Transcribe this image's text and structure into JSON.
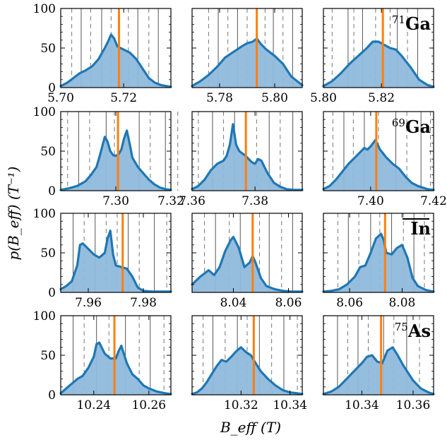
{
  "figure": {
    "ylabel": "p(B_eff) (T⁻¹)",
    "xlabel": "B_eff (T)"
  },
  "colors": {
    "fill": "#8fb9dc",
    "line": "#1f77b4",
    "marker": "#ff7f0e",
    "solid_grid": "#555555",
    "dashed_grid": "#777777"
  },
  "chart_data": [
    {
      "type": "area",
      "row": 0,
      "col": 0,
      "label": "",
      "xlim": [
        5.7,
        5.735
      ],
      "ylim": [
        0,
        100
      ],
      "xticks": [
        5.7,
        5.72
      ],
      "xticklabels": [
        "5.70",
        "5.72"
      ],
      "yticks": [
        0,
        50,
        100
      ],
      "vline": 5.7185,
      "solid_lines": [
        5.7065,
        5.713,
        5.7245,
        5.731
      ],
      "dashed_lines": [
        5.7035,
        5.7095,
        5.716,
        5.7215,
        5.728
      ],
      "x": [
        5.7,
        5.702,
        5.704,
        5.706,
        5.708,
        5.71,
        5.712,
        5.714,
        5.715,
        5.716,
        5.717,
        5.718,
        5.72,
        5.722,
        5.724,
        5.726,
        5.728,
        5.73,
        5.732,
        5.735
      ],
      "y": [
        2,
        6,
        12,
        18,
        22,
        27,
        36,
        50,
        58,
        67,
        62,
        52,
        48,
        44,
        36,
        24,
        12,
        6,
        3,
        1
      ]
    },
    {
      "type": "area",
      "row": 0,
      "col": 1,
      "label": "",
      "xlim": [
        5.77,
        5.81
      ],
      "ylim": [
        0,
        100
      ],
      "xticks": [
        5.78,
        5.8
      ],
      "xticklabels": [
        "5.78",
        "5.80"
      ],
      "yticks": [
        0,
        50,
        100
      ],
      "vline": 5.7935,
      "solid_lines": [
        5.7795,
        5.7865,
        5.7995,
        5.8065
      ],
      "dashed_lines": [
        5.776,
        5.783,
        5.79,
        5.7965,
        5.803
      ],
      "x": [
        5.77,
        5.773,
        5.776,
        5.779,
        5.782,
        5.785,
        5.788,
        5.79,
        5.792,
        5.7935,
        5.795,
        5.797,
        5.8,
        5.803,
        5.806,
        5.81
      ],
      "y": [
        2,
        8,
        16,
        26,
        38,
        45,
        52,
        56,
        58,
        62,
        55,
        48,
        40,
        30,
        14,
        3
      ]
    },
    {
      "type": "area",
      "row": 0,
      "col": 2,
      "label": "71Ga",
      "xlim": [
        5.8,
        5.838
      ],
      "ylim": [
        0,
        100
      ],
      "xticks": [
        5.8,
        5.82
      ],
      "xticklabels": [
        "5.80",
        "5.82"
      ],
      "yticks": [
        0,
        50,
        100
      ],
      "vline": 5.8205,
      "solid_lines": [
        5.8085,
        5.8135,
        5.8255,
        5.8325
      ],
      "dashed_lines": [
        5.803,
        5.8105,
        5.818,
        5.823,
        5.829
      ],
      "x": [
        5.8,
        5.803,
        5.806,
        5.809,
        5.812,
        5.815,
        5.817,
        5.819,
        5.821,
        5.823,
        5.825,
        5.827,
        5.83,
        5.833,
        5.836,
        5.838
      ],
      "y": [
        2,
        8,
        18,
        30,
        40,
        50,
        58,
        58,
        54,
        50,
        48,
        40,
        26,
        10,
        3,
        1
      ]
    },
    {
      "type": "area",
      "row": 1,
      "col": 0,
      "label": "",
      "xlim": [
        7.28,
        7.32
      ],
      "ylim": [
        0,
        100
      ],
      "xticks": [
        7.3,
        7.32
      ],
      "xticklabels": [
        "7.30",
        "7.32"
      ],
      "yticks": [
        0,
        50,
        100
      ],
      "vline": 7.3008,
      "solid_lines": [
        7.2865,
        7.2965,
        7.3085,
        7.318
      ],
      "dashed_lines": [
        7.2825,
        7.2905,
        7.2995,
        7.3125,
        7.3225
      ],
      "x": [
        7.28,
        7.283,
        7.286,
        7.289,
        7.291,
        7.293,
        7.294,
        7.295,
        7.296,
        7.297,
        7.298,
        7.299,
        7.3,
        7.301,
        7.302,
        7.303,
        7.304,
        7.305,
        7.306,
        7.308,
        7.31,
        7.312,
        7.314,
        7.316,
        7.318,
        7.32
      ],
      "y": [
        1,
        3,
        6,
        12,
        20,
        30,
        42,
        55,
        68,
        62,
        50,
        45,
        44,
        46,
        52,
        66,
        76,
        60,
        42,
        30,
        22,
        14,
        8,
        4,
        2,
        1
      ]
    },
    {
      "type": "area",
      "row": 1,
      "col": 1,
      "label": "",
      "xlim": [
        7.36,
        7.395
      ],
      "ylim": [
        0,
        100
      ],
      "xticks": [
        7.36,
        7.38
      ],
      "xticklabels": [
        "7.36",
        "7.38"
      ],
      "yticks": [
        0,
        50,
        100
      ],
      "vline": 7.3771,
      "solid_lines": [
        7.3665,
        7.3735,
        7.3845,
        7.392
      ],
      "dashed_lines": [
        7.362,
        7.37,
        7.3805,
        7.388
      ],
      "x": [
        7.36,
        7.362,
        7.364,
        7.366,
        7.368,
        7.37,
        7.371,
        7.372,
        7.373,
        7.374,
        7.375,
        7.377,
        7.379,
        7.38,
        7.381,
        7.382,
        7.384,
        7.386,
        7.388,
        7.39,
        7.392,
        7.395
      ],
      "y": [
        2,
        6,
        14,
        26,
        34,
        38,
        44,
        58,
        84,
        58,
        50,
        44,
        36,
        34,
        40,
        38,
        22,
        10,
        5,
        2,
        1,
        1
      ]
    },
    {
      "type": "area",
      "row": 1,
      "col": 2,
      "label": "69Ga",
      "xlim": [
        7.385,
        7.42
      ],
      "ylim": [
        0,
        100
      ],
      "xticks": [
        7.4,
        7.42
      ],
      "xticklabels": [
        "7.40",
        "7.42"
      ],
      "yticks": [
        0,
        50,
        100
      ],
      "vline": 7.4018,
      "solid_lines": [
        7.3915,
        7.398,
        7.408,
        7.416
      ],
      "dashed_lines": [
        7.388,
        7.3945,
        7.4025,
        7.4115,
        7.419
      ],
      "x": [
        7.385,
        7.387,
        7.389,
        7.391,
        7.393,
        7.395,
        7.397,
        7.398,
        7.399,
        7.4,
        7.4015,
        7.403,
        7.405,
        7.407,
        7.409,
        7.411,
        7.413,
        7.415,
        7.418,
        7.42
      ],
      "y": [
        2,
        6,
        14,
        24,
        34,
        42,
        50,
        54,
        52,
        56,
        64,
        52,
        42,
        34,
        28,
        18,
        10,
        6,
        2,
        1
      ]
    },
    {
      "type": "area",
      "row": 2,
      "col": 0,
      "label": "",
      "xlim": [
        7.95,
        7.99
      ],
      "ylim": [
        0,
        100
      ],
      "xticks": [
        7.96,
        7.98
      ],
      "xticklabels": [
        "7.96",
        "7.98"
      ],
      "yticks": [
        0,
        50,
        100
      ],
      "vline": 7.9725,
      "solid_lines": [
        7.9545,
        7.9625,
        7.9745,
        7.984
      ],
      "dashed_lines": [
        7.9585,
        7.9665,
        7.9705,
        7.9785,
        7.9885
      ],
      "x": [
        7.95,
        7.952,
        7.954,
        7.956,
        7.957,
        7.958,
        7.96,
        7.962,
        7.964,
        7.966,
        7.967,
        7.968,
        7.969,
        7.97,
        7.972,
        7.974,
        7.976,
        7.978,
        7.98,
        7.983,
        7.986,
        7.99
      ],
      "y": [
        4,
        8,
        14,
        34,
        60,
        62,
        55,
        48,
        44,
        50,
        68,
        78,
        48,
        34,
        32,
        30,
        20,
        6,
        2,
        1,
        1,
        1
      ]
    },
    {
      "type": "area",
      "row": 2,
      "col": 1,
      "label": "",
      "xlim": [
        8.025,
        8.065
      ],
      "ylim": [
        0,
        100
      ],
      "xticks": [
        8.04,
        8.06
      ],
      "xticklabels": [
        "8.04",
        "8.06"
      ],
      "yticks": [
        0,
        50,
        100
      ],
      "vline": 8.047,
      "solid_lines": [
        8.0335,
        8.0425,
        8.053,
        8.0615
      ],
      "dashed_lines": [
        8.0295,
        8.0385,
        8.0495,
        8.0575
      ],
      "x": [
        8.025,
        8.028,
        8.031,
        8.033,
        8.035,
        8.037,
        8.039,
        8.04,
        8.042,
        8.044,
        8.046,
        8.047,
        8.048,
        8.05,
        8.052,
        8.055,
        8.058,
        8.061,
        8.065
      ],
      "y": [
        10,
        20,
        28,
        22,
        32,
        52,
        66,
        70,
        56,
        32,
        38,
        46,
        38,
        18,
        8,
        4,
        2,
        1,
        1
      ]
    },
    {
      "type": "area",
      "row": 2,
      "col": 2,
      "label": "In",
      "xlim": [
        8.05,
        8.092
      ],
      "ylim": [
        0,
        100
      ],
      "xticks": [
        8.06,
        8.08
      ],
      "xticklabels": [
        "8.06",
        "8.08"
      ],
      "yticks": [
        0,
        50,
        100
      ],
      "vline": 8.0735,
      "solid_lines": [
        8.0595,
        8.068,
        8.076,
        8.0845
      ],
      "dashed_lines": [
        8.0555,
        8.0635,
        8.0715,
        8.0805,
        8.0885
      ],
      "x": [
        8.05,
        8.053,
        8.056,
        8.059,
        8.062,
        8.064,
        8.066,
        8.068,
        8.07,
        8.072,
        8.073,
        8.074,
        8.076,
        8.078,
        8.08,
        8.082,
        8.084,
        8.086,
        8.089,
        8.092
      ],
      "y": [
        1,
        2,
        4,
        10,
        20,
        32,
        34,
        50,
        68,
        74,
        66,
        50,
        48,
        56,
        60,
        44,
        18,
        8,
        3,
        1
      ]
    },
    {
      "type": "area",
      "row": 3,
      "col": 0,
      "label": "",
      "xlim": [
        10.228,
        10.268
      ],
      "ylim": [
        0,
        100
      ],
      "xticks": [
        10.24,
        10.26
      ],
      "xticklabels": [
        "10.24",
        "10.26"
      ],
      "yticks": [
        0,
        50,
        100
      ],
      "vline": 10.2475,
      "solid_lines": [
        10.2325,
        10.241,
        10.2515,
        10.2605
      ],
      "dashed_lines": [
        10.2365,
        10.2455,
        10.2565,
        10.2655
      ],
      "x": [
        10.228,
        10.23,
        10.232,
        10.234,
        10.236,
        10.238,
        10.24,
        10.241,
        10.242,
        10.244,
        10.246,
        10.248,
        10.249,
        10.25,
        10.252,
        10.254,
        10.256,
        10.258,
        10.26,
        10.263,
        10.266,
        10.268
      ],
      "y": [
        2,
        8,
        14,
        20,
        24,
        34,
        48,
        64,
        66,
        52,
        46,
        46,
        55,
        62,
        40,
        26,
        20,
        12,
        8,
        4,
        2,
        1
      ]
    },
    {
      "type": "area",
      "row": 3,
      "col": 1,
      "label": "",
      "xlim": [
        10.3,
        10.345
      ],
      "ylim": [
        0,
        100
      ],
      "xticks": [
        10.32,
        10.34
      ],
      "xticklabels": [
        "10.32",
        "10.34"
      ],
      "yticks": [
        0,
        50,
        100
      ],
      "vline": 10.3252,
      "solid_lines": [
        10.3085,
        10.3185,
        10.3275,
        10.3375
      ],
      "dashed_lines": [
        10.3045,
        10.3135,
        10.3225,
        10.3325,
        10.343
      ],
      "x": [
        10.3,
        10.302,
        10.304,
        10.306,
        10.308,
        10.31,
        10.312,
        10.314,
        10.316,
        10.318,
        10.32,
        10.322,
        10.324,
        10.326,
        10.328,
        10.331,
        10.334,
        10.337,
        10.34,
        10.343,
        10.345
      ],
      "y": [
        1,
        3,
        8,
        16,
        26,
        36,
        44,
        42,
        48,
        55,
        60,
        54,
        50,
        40,
        30,
        20,
        12,
        6,
        3,
        2,
        1
      ]
    },
    {
      "type": "area",
      "row": 3,
      "col": 2,
      "label": "75As",
      "xlim": [
        10.325,
        10.368
      ],
      "ylim": [
        0,
        100
      ],
      "xticks": [
        10.34,
        10.36
      ],
      "xticklabels": [
        "10.34",
        "10.36"
      ],
      "yticks": [
        0,
        50,
        100
      ],
      "vline": 10.3475,
      "solid_lines": [
        10.3305,
        10.3385,
        10.3485,
        10.3575
      ],
      "dashed_lines": [
        10.3345,
        10.3425,
        10.3525,
        10.3625
      ],
      "x": [
        10.325,
        10.328,
        10.331,
        10.334,
        10.337,
        10.34,
        10.342,
        10.344,
        10.346,
        10.348,
        10.35,
        10.352,
        10.354,
        10.356,
        10.358,
        10.36,
        10.363,
        10.366,
        10.368
      ],
      "y": [
        1,
        4,
        10,
        20,
        30,
        40,
        48,
        50,
        42,
        40,
        56,
        60,
        50,
        38,
        28,
        18,
        8,
        3,
        1
      ]
    }
  ]
}
